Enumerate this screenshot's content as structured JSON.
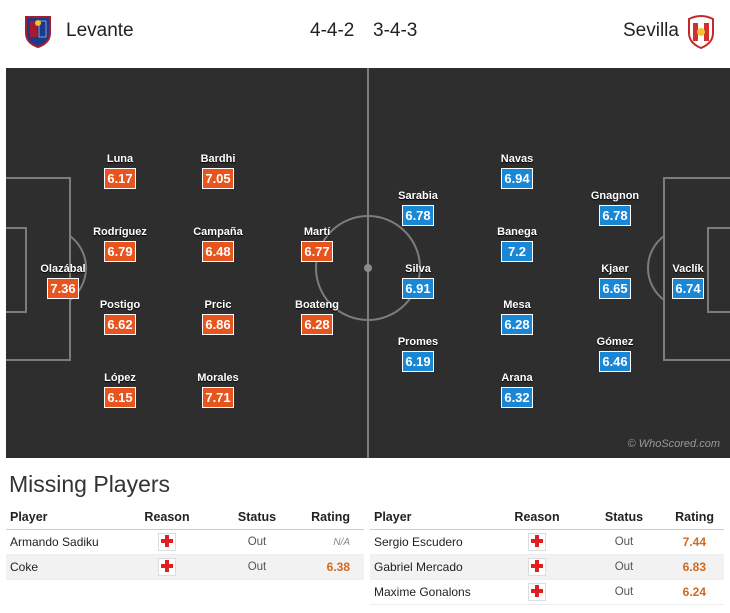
{
  "home": {
    "name": "Levante",
    "formation": "4-4-2",
    "colors": {
      "primary": "#1b3a8c",
      "secondary": "#a51d2d"
    },
    "players": [
      {
        "name": "Olazábal",
        "rating": "7.36"
      },
      {
        "name": "Luna",
        "rating": "6.17"
      },
      {
        "name": "Rodríguez",
        "rating": "6.79"
      },
      {
        "name": "Postigo",
        "rating": "6.62"
      },
      {
        "name": "López",
        "rating": "6.15"
      },
      {
        "name": "Bardhi",
        "rating": "7.05"
      },
      {
        "name": "Campaña",
        "rating": "6.48"
      },
      {
        "name": "Prcic",
        "rating": "6.86"
      },
      {
        "name": "Morales",
        "rating": "7.71"
      },
      {
        "name": "Martí",
        "rating": "6.77"
      },
      {
        "name": "Boateng",
        "rating": "6.28"
      }
    ]
  },
  "away": {
    "name": "Sevilla",
    "formation": "3-4-3",
    "colors": {
      "primary": "#d32f2f",
      "secondary": "#ffffff"
    },
    "players": [
      {
        "name": "Vaclík",
        "rating": "6.74"
      },
      {
        "name": "Gnagnon",
        "rating": "6.78"
      },
      {
        "name": "Kjaer",
        "rating": "6.65"
      },
      {
        "name": "Gómez",
        "rating": "6.46"
      },
      {
        "name": "Navas",
        "rating": "6.94"
      },
      {
        "name": "Banega",
        "rating": "7.2"
      },
      {
        "name": "Mesa",
        "rating": "6.28"
      },
      {
        "name": "Arana",
        "rating": "6.32"
      },
      {
        "name": "Sarabia",
        "rating": "6.78"
      },
      {
        "name": "Silva",
        "rating": "6.91"
      },
      {
        "name": "Promes",
        "rating": "6.19"
      }
    ]
  },
  "colors": {
    "home_rating": "#e8541e",
    "away_rating": "#1a87d6",
    "pitch": "#2e2e2e",
    "pitch_lines": "#8a8a8a"
  },
  "watermark": "© WhoScored.com",
  "missing": {
    "title": "Missing Players",
    "headers": {
      "player": "Player",
      "reason": "Reason",
      "status": "Status",
      "rating": "Rating"
    },
    "home": [
      {
        "player": "Armando Sadiku",
        "reason_icon": "injury-cross-icon",
        "status": "Out",
        "rating": "N/A"
      },
      {
        "player": "Coke",
        "reason_icon": "injury-cross-icon",
        "status": "Out",
        "rating": "6.38"
      }
    ],
    "away": [
      {
        "player": "Sergio Escudero",
        "reason_icon": "injury-cross-icon",
        "status": "Out",
        "rating": "7.44"
      },
      {
        "player": "Gabriel Mercado",
        "reason_icon": "injury-cross-icon",
        "status": "Out",
        "rating": "6.83"
      },
      {
        "player": "Maxime Gonalons",
        "reason_icon": "injury-cross-icon",
        "status": "Out",
        "rating": "6.24"
      }
    ]
  }
}
